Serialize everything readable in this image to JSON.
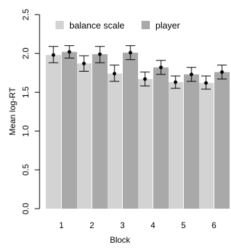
{
  "chart_data": {
    "type": "bar",
    "title": "",
    "xlabel": "Block",
    "ylabel": "Mean log-RT",
    "categories": [
      "1",
      "2",
      "3",
      "4",
      "5",
      "6"
    ],
    "ylim": [
      0,
      2.5
    ],
    "yticks": [
      "0.0",
      "0.5",
      "1.0",
      "1.5",
      "2.0",
      "2.5"
    ],
    "legend": {
      "position": "top-left"
    },
    "series": [
      {
        "name": "balance scale",
        "color": "#d3d3d3",
        "values": [
          1.98,
          1.87,
          1.74,
          1.67,
          1.63,
          1.62
        ],
        "err_low": [
          1.88,
          1.77,
          1.64,
          1.58,
          1.55,
          1.54
        ],
        "err_high": [
          2.09,
          1.97,
          1.85,
          1.76,
          1.71,
          1.71
        ]
      },
      {
        "name": "player",
        "color": "#a9a9a9",
        "values": [
          2.02,
          1.99,
          2.01,
          1.82,
          1.73,
          1.76
        ],
        "err_low": [
          1.94,
          1.88,
          1.92,
          1.73,
          1.64,
          1.67
        ],
        "err_high": [
          2.1,
          2.09,
          2.1,
          1.91,
          1.82,
          1.85
        ]
      }
    ]
  }
}
